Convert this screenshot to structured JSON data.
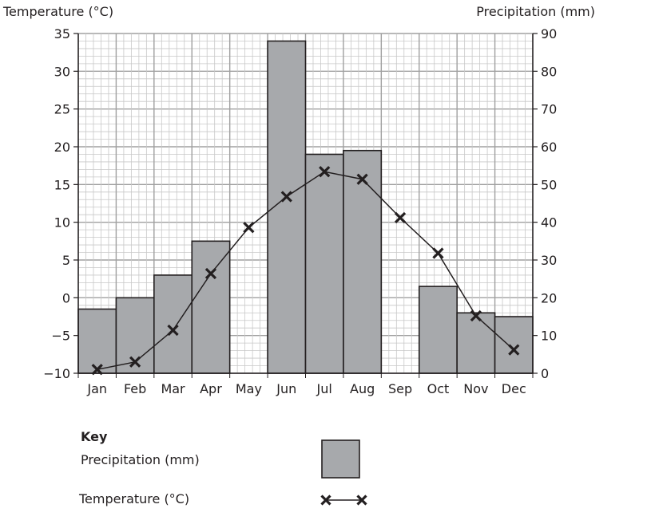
{
  "chart_data": {
    "type": "bar+line",
    "categories": [
      "Jan",
      "Feb",
      "Mar",
      "Apr",
      "May",
      "Jun",
      "Jul",
      "Aug",
      "Sep",
      "Oct",
      "Nov",
      "Dec"
    ],
    "series": [
      {
        "name": "Precipitation (mm)",
        "type": "bar",
        "axis": "right",
        "color": "#a7a9ac",
        "values": [
          17,
          20,
          26,
          35,
          0,
          88,
          58,
          59,
          0,
          23,
          16,
          15
        ]
      },
      {
        "name": "Temperature (°C)",
        "type": "line",
        "axis": "left",
        "marker": "cross",
        "color": "#231f20",
        "values": [
          -9.5,
          -8.5,
          -4.3,
          3.2,
          9.3,
          13.4,
          16.7,
          15.7,
          10.6,
          5.9,
          -2.4,
          -6.9
        ]
      }
    ],
    "ylabel_left": "Temperature (°C)",
    "ylabel_right": "Precipitation (mm)",
    "ylim_left": [
      -10,
      35
    ],
    "ylim_right": [
      0,
      90
    ],
    "yticks_left": [
      -10,
      -5,
      0,
      5,
      10,
      15,
      20,
      25,
      30,
      35
    ],
    "yticks_right": [
      0,
      10,
      20,
      30,
      40,
      50,
      60,
      70,
      80,
      90
    ],
    "grid": true
  },
  "key": {
    "title": "Key",
    "precip_label": "Precipitation (mm)",
    "temp_label": "Temperature (°C)"
  }
}
